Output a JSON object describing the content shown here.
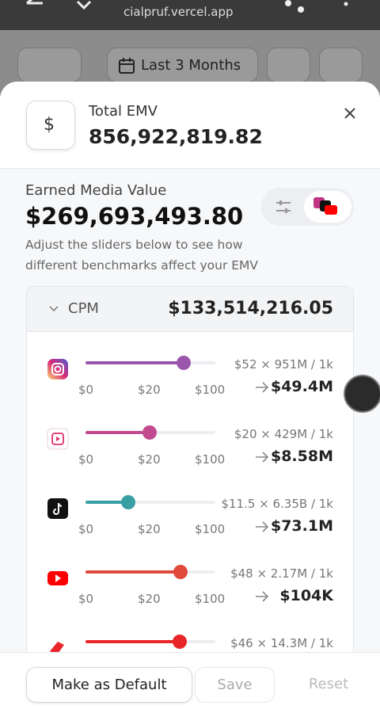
{
  "browser": {
    "url": "cialpruf.vercel.app"
  },
  "toolbar": {
    "date_range": "Last 3 Months"
  },
  "modal": {
    "currency_icon": "$",
    "total_label": "Total EMV",
    "total_value": "856,922,819.82",
    "emv_label": "Earned Media Value",
    "emv_value": "$269,693,493.80",
    "description": "Adjust the sliders below to see how different benchmarks affect your EMV",
    "section": {
      "title": "CPM",
      "value": "$133,514,216.05"
    },
    "rows": [
      {
        "scale": [
          "$0",
          "$20",
          "$100"
        ],
        "formula": "$52 × 951M / 1k",
        "result": "$49.4M"
      },
      {
        "scale": [
          "$0",
          "$20",
          "$100"
        ],
        "formula": "$20 × 429M / 1k",
        "result": "$8.58M"
      },
      {
        "scale": [
          "$0",
          "$20",
          "$100"
        ],
        "formula": "$11.5 × 6.35B / 1k",
        "result": "$73.1M"
      },
      {
        "scale": [
          "$0",
          "$20",
          "$100"
        ],
        "formula": "$48 × 2.17M / 1k",
        "result": "$104K"
      },
      {
        "formula": "$46 × 14.3M / 1k"
      }
    ],
    "buttons": [
      "Make as Default",
      "Save",
      "Reset"
    ]
  }
}
